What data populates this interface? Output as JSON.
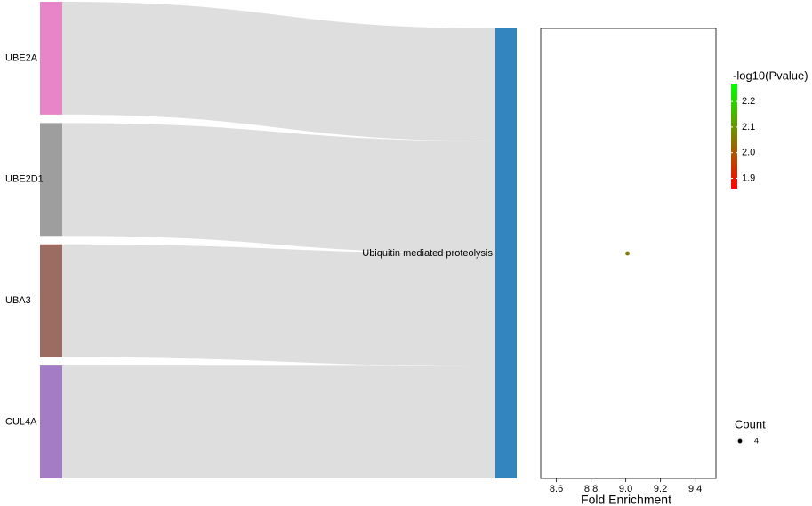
{
  "chart_data": [
    {
      "type": "sankey",
      "sources": [
        "UBE2A",
        "UBE2D1",
        "UBA3",
        "CUL4A"
      ],
      "source_colors": [
        "#e884c8",
        "#9e9e9e",
        "#9c6b62",
        "#a27cc4"
      ],
      "values": [
        1,
        1,
        1,
        1
      ],
      "target": "Ubiquitin mediated proteolysis",
      "target_color": "#3385bf",
      "link_color": "#dedede"
    },
    {
      "type": "scatter",
      "xlabel": "Fold Enrichment",
      "x": [
        9.01
      ],
      "color_values": [
        2.06
      ],
      "sizes": [
        4
      ],
      "xlim": [
        8.51,
        9.52
      ],
      "xticks": [
        8.6,
        8.8,
        {
          "value": 9.0,
          "label": "9.0"
        },
        9.2,
        9.4
      ],
      "color_title": "-log10(Pvalue)",
      "clim": [
        1.86,
        2.27
      ],
      "cticks": [
        1.9,
        {
          "value": 2.0,
          "label": "2.0"
        },
        2.1,
        2.2
      ],
      "color_low": "#ff0000",
      "color_high": "#00ff00",
      "size_title": "Count",
      "size_values": [
        4
      ]
    }
  ]
}
